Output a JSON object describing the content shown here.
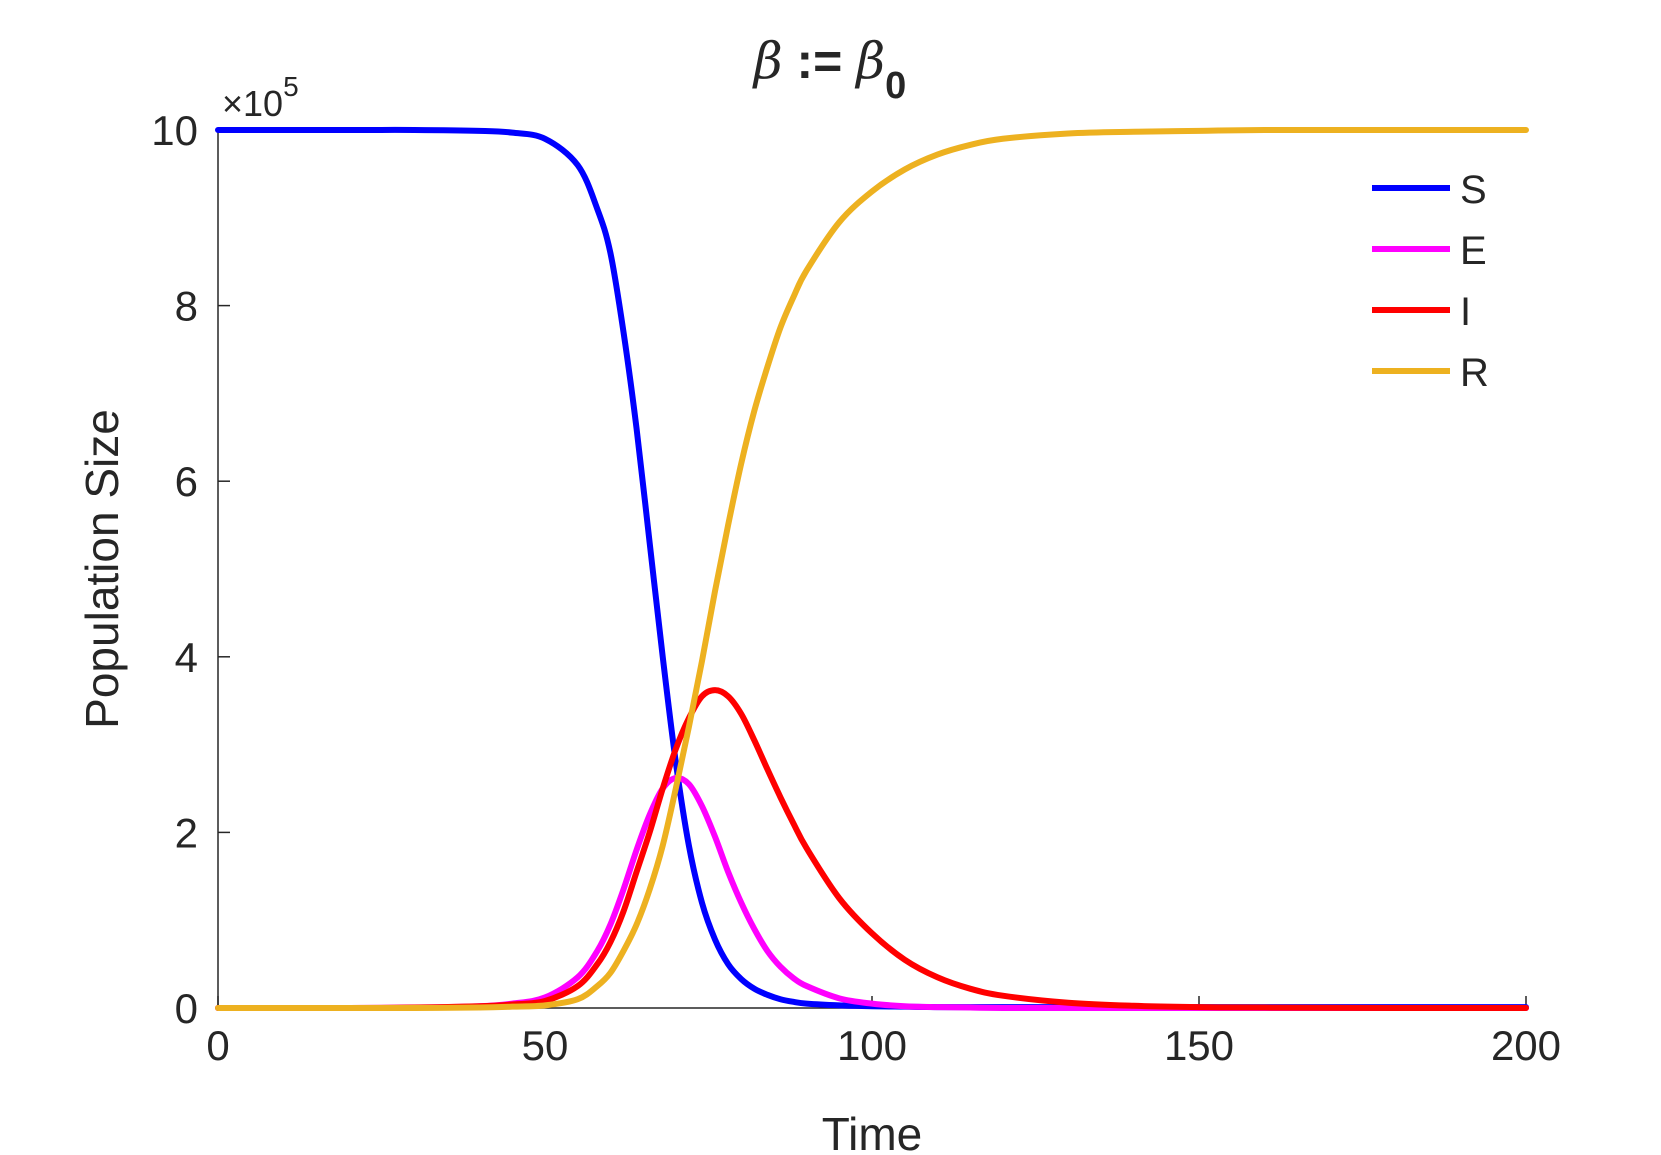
{
  "chart_data": {
    "type": "line",
    "title": {
      "beta": "β",
      "assign": " := ",
      "beta0": "β",
      "subscript": "0"
    },
    "xlabel": "Time",
    "ylabel": "Population Size",
    "y_exponent_label": {
      "times": "×10",
      "power": "5"
    },
    "xlim": [
      0,
      200
    ],
    "ylim": [
      0,
      10
    ],
    "xticks": [
      "0",
      "50",
      "100",
      "150",
      "200"
    ],
    "yticks": [
      "0",
      "2",
      "4",
      "6",
      "8",
      "10"
    ],
    "grid": false,
    "legend_position": "top-right",
    "x": [
      0,
      20,
      30,
      40,
      45,
      50,
      55,
      58,
      60,
      62,
      64,
      66,
      68,
      70,
      72,
      74,
      76,
      78,
      80,
      82,
      84,
      86,
      88,
      90,
      95,
      100,
      105,
      110,
      115,
      120,
      130,
      140,
      150,
      160,
      180,
      200
    ],
    "series": [
      {
        "name": "S",
        "color": "#0000ff",
        "values": [
          10.0,
          10.0,
          10.0,
          9.99,
          9.97,
          9.9,
          9.6,
          9.1,
          8.6,
          7.7,
          6.6,
          5.3,
          4.0,
          2.8,
          1.85,
          1.2,
          0.78,
          0.5,
          0.33,
          0.22,
          0.15,
          0.1,
          0.07,
          0.05,
          0.03,
          0.02,
          0.015,
          0.01,
          0.01,
          0.01,
          0.01,
          0.01,
          0.01,
          0.01,
          0.01,
          0.01
        ]
      },
      {
        "name": "E",
        "color": "#ff00ff",
        "values": [
          0.0,
          0.0,
          0.005,
          0.02,
          0.05,
          0.12,
          0.35,
          0.65,
          0.95,
          1.35,
          1.8,
          2.2,
          2.5,
          2.62,
          2.55,
          2.3,
          1.95,
          1.55,
          1.2,
          0.9,
          0.65,
          0.47,
          0.34,
          0.25,
          0.11,
          0.05,
          0.02,
          0.01,
          0.005,
          0.0,
          0.0,
          0.0,
          0.0,
          0.0,
          0.0,
          0.0
        ]
      },
      {
        "name": "I",
        "color": "#ff0000",
        "values": [
          0.0,
          0.0,
          0.005,
          0.02,
          0.04,
          0.08,
          0.25,
          0.5,
          0.75,
          1.1,
          1.55,
          2.0,
          2.5,
          2.95,
          3.3,
          3.55,
          3.62,
          3.55,
          3.35,
          3.05,
          2.72,
          2.4,
          2.1,
          1.82,
          1.25,
          0.85,
          0.55,
          0.35,
          0.22,
          0.14,
          0.06,
          0.025,
          0.01,
          0.005,
          0.0,
          0.0
        ]
      },
      {
        "name": "R",
        "color": "#edb120",
        "values": [
          0.0,
          0.0,
          0.0,
          0.005,
          0.015,
          0.03,
          0.1,
          0.25,
          0.4,
          0.65,
          0.95,
          1.35,
          1.85,
          2.5,
          3.2,
          3.95,
          4.75,
          5.5,
          6.2,
          6.8,
          7.3,
          7.75,
          8.1,
          8.4,
          8.95,
          9.3,
          9.55,
          9.72,
          9.83,
          9.9,
          9.96,
          9.98,
          9.99,
          10.0,
          10.0,
          10.0
        ]
      }
    ]
  }
}
